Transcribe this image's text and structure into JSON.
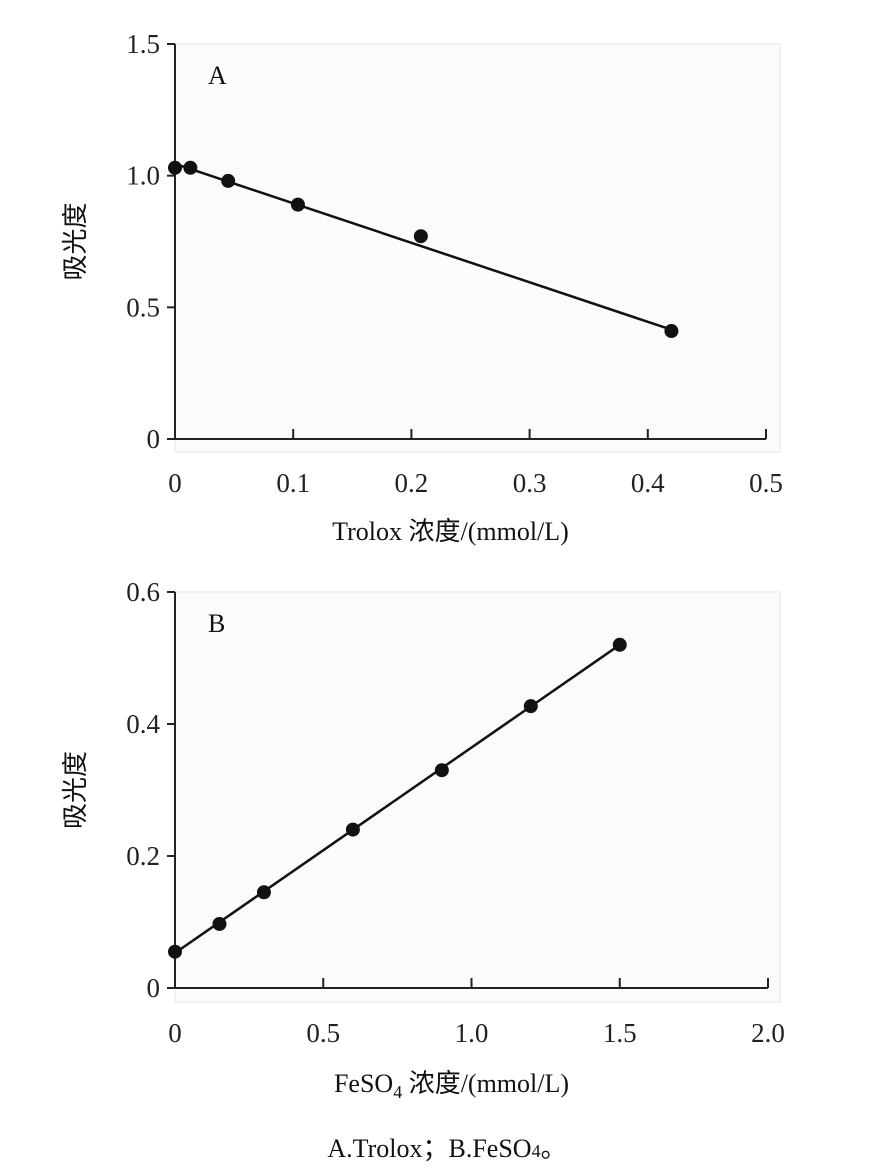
{
  "caption": {
    "text": "A.Trolox；B.FeSO",
    "sub": "4",
    "suffix": "。"
  },
  "chart_data": [
    {
      "type": "scatter",
      "panel_label": "A",
      "xlabel": "Trolox 浓度/(mmol/L)",
      "ylabel": "吸光度",
      "xlim": [
        0,
        0.5
      ],
      "ylim": [
        0,
        1.5
      ],
      "x_ticks": [
        "0",
        "0.1",
        "0.2",
        "0.3",
        "0.4",
        "0.5"
      ],
      "y_ticks": [
        "0",
        "0.5",
        "1.0",
        "1.5"
      ],
      "x_tick_values": [
        0,
        0.1,
        0.2,
        0.3,
        0.4,
        0.5
      ],
      "y_tick_values": [
        0,
        0.5,
        1.0,
        1.5
      ],
      "points": [
        {
          "x": 0.0,
          "y": 1.03
        },
        {
          "x": 0.013,
          "y": 1.03
        },
        {
          "x": 0.045,
          "y": 0.98
        },
        {
          "x": 0.104,
          "y": 0.89
        },
        {
          "x": 0.208,
          "y": 0.77
        },
        {
          "x": 0.42,
          "y": 0.41
        }
      ],
      "fit_line": {
        "x0": 0.0,
        "y0": 1.045,
        "x1": 0.42,
        "y1": 0.415
      },
      "grid": false
    },
    {
      "type": "scatter",
      "panel_label": "B",
      "xlabel_main": "FeSO",
      "xlabel_sub": "4",
      "xlabel_rest": " 浓度/(mmol/L)",
      "ylabel": "吸光度",
      "xlim": [
        0,
        2.0
      ],
      "ylim": [
        0,
        0.6
      ],
      "x_ticks": [
        "0",
        "0.5",
        "1.0",
        "1.5",
        "2.0"
      ],
      "y_ticks": [
        "0",
        "0.2",
        "0.4",
        "0.6"
      ],
      "x_tick_values": [
        0,
        0.5,
        1.0,
        1.5,
        2.0
      ],
      "y_tick_values": [
        0,
        0.2,
        0.4,
        0.6
      ],
      "points": [
        {
          "x": 0.0,
          "y": 0.055
        },
        {
          "x": 0.15,
          "y": 0.097
        },
        {
          "x": 0.3,
          "y": 0.145
        },
        {
          "x": 0.6,
          "y": 0.24
        },
        {
          "x": 0.9,
          "y": 0.33
        },
        {
          "x": 1.2,
          "y": 0.427
        },
        {
          "x": 1.5,
          "y": 0.52
        }
      ],
      "fit_line": {
        "x0": 0.0,
        "y0": 0.053,
        "x1": 1.5,
        "y1": 0.52
      },
      "grid": false
    }
  ]
}
